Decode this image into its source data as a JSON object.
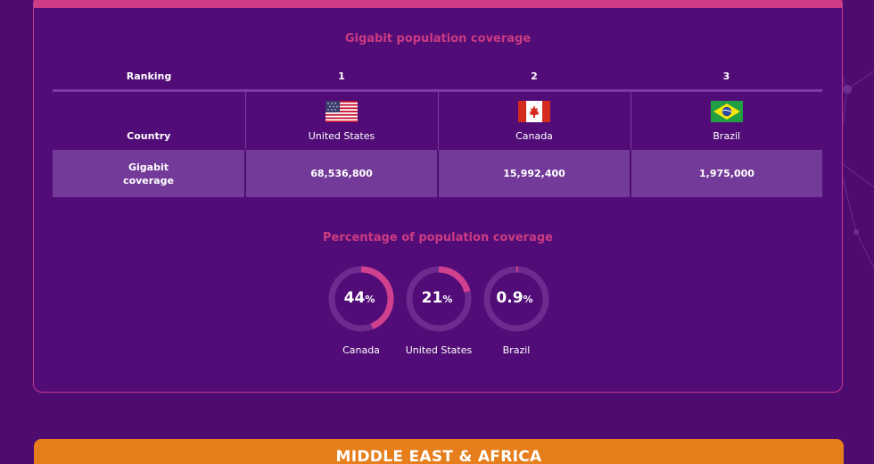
{
  "table": {
    "title": "Gigabit population coverage",
    "ranking_label": "Ranking",
    "country_label": "Country",
    "coverage_label": "Gigabit coverage",
    "ranks": [
      "1",
      "2",
      "3"
    ],
    "countries": [
      {
        "name": "United States",
        "flag": "us-flag-icon",
        "coverage": "68,536,800"
      },
      {
        "name": "Canada",
        "flag": "canada-flag-icon",
        "coverage": "15,992,400"
      },
      {
        "name": "Brazil",
        "flag": "brazil-flag-icon",
        "coverage": "1,975,000"
      }
    ]
  },
  "chart_data": {
    "type": "pie",
    "title": "Percentage of population coverage",
    "categories": [
      "Canada",
      "United States",
      "Brazil"
    ],
    "values": [
      44,
      21,
      0.9
    ],
    "display": [
      "44",
      "21",
      "0.9"
    ],
    "unit": "%"
  },
  "colors": {
    "background": "#4e0b70",
    "accent": "#cc3b82",
    "ring_track": "#6e2a8e",
    "ring_fill": "#d0408f",
    "table_row": "#743a99",
    "region_bar": "#e57e1b"
  },
  "next_section": {
    "title": "MIDDLE EAST & AFRICA"
  }
}
